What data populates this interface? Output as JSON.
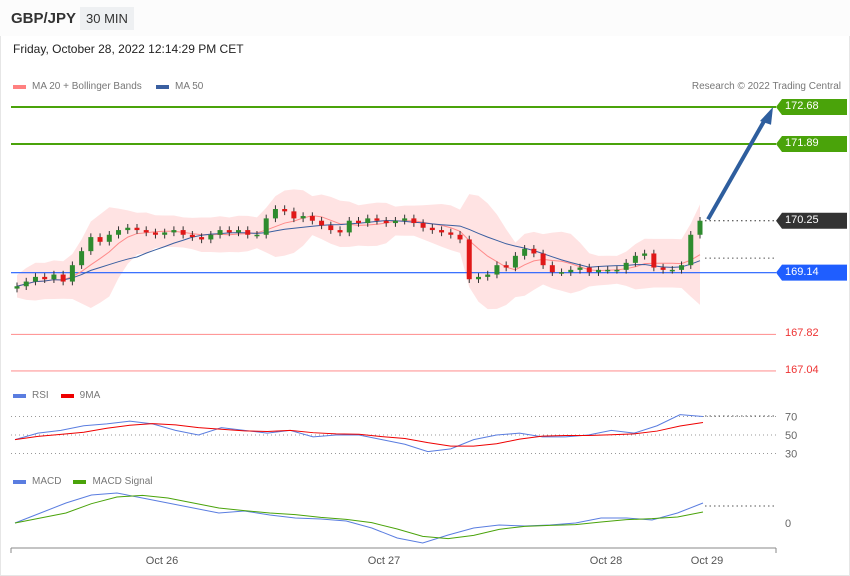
{
  "header": {
    "symbol": "GBP/JPY",
    "timeframe": "30 MIN"
  },
  "datetime": "Friday, October 28, 2022 12:14:29 PM CET",
  "legend": {
    "ma20": "MA 20 + Bollinger Bands",
    "ma50": "MA 50",
    "rsi": "RSI",
    "rsi_ma": "9MA",
    "macd": "MACD",
    "macd_signal": "MACD Signal"
  },
  "credit": "Research © 2022 Trading Central",
  "colors": {
    "green": "#4aa30a",
    "blue": "#1f5eff",
    "dark": "#333333",
    "red": "#ee3333",
    "ma50": "#3a5fa0",
    "arrow": "#2e5e9e"
  },
  "levels": [
    {
      "label": "172.68",
      "value": 172.68,
      "type": "resistance"
    },
    {
      "label": "171.89",
      "value": 171.89,
      "type": "resistance"
    },
    {
      "label": "170.25",
      "value": 170.25,
      "type": "current"
    },
    {
      "label": "169.14",
      "value": 169.14,
      "type": "pivot"
    },
    {
      "label": "167.82",
      "value": 167.82,
      "type": "support"
    },
    {
      "label": "167.04",
      "value": 167.04,
      "type": "support"
    }
  ],
  "chart_data": {
    "type": "candlestick",
    "closes": [
      168.85,
      168.95,
      169.05,
      169.0,
      169.1,
      168.95,
      169.3,
      169.6,
      169.9,
      169.8,
      169.95,
      170.05,
      170.1,
      170.05,
      170.0,
      169.95,
      170.0,
      170.05,
      169.95,
      169.9,
      169.85,
      169.95,
      170.05,
      170.0,
      170.05,
      169.95,
      169.95,
      170.3,
      170.5,
      170.45,
      170.3,
      170.35,
      170.25,
      170.15,
      170.05,
      170.0,
      170.25,
      170.2,
      170.3,
      170.25,
      170.2,
      170.25,
      170.3,
      170.2,
      170.1,
      170.05,
      170.0,
      169.95,
      169.85,
      169.0,
      169.05,
      169.1,
      169.3,
      169.25,
      169.5,
      169.65,
      169.55,
      169.3,
      169.15,
      169.15,
      169.2,
      169.25,
      169.15,
      169.2,
      169.2,
      169.2,
      169.35,
      169.5,
      169.55,
      169.25,
      169.2,
      169.2,
      169.3,
      169.95,
      170.25
    ],
    "rsi": [
      45,
      52,
      55,
      60,
      62,
      65,
      62,
      55,
      50,
      58,
      55,
      52,
      55,
      48,
      50,
      50,
      45,
      40,
      32,
      35,
      45,
      50,
      52,
      48,
      48,
      50,
      55,
      52,
      60,
      72,
      70
    ],
    "rsi_levels": [
      "70",
      "50",
      "30"
    ],
    "macd": [
      0,
      0.1,
      0.2,
      0.28,
      0.3,
      0.25,
      0.2,
      0.15,
      0.1,
      0.12,
      0.08,
      0.05,
      0.04,
      0.02,
      -0.05,
      -0.15,
      -0.2,
      -0.12,
      -0.05,
      -0.02,
      -0.03,
      -0.02,
      0,
      0.05,
      0.05,
      0.03,
      0.1,
      0.2
    ],
    "macd_zero": "0",
    "x_labels": [
      "Oct 26",
      "Oct 27",
      "Oct 28",
      "Oct 29"
    ],
    "target": 172.68
  }
}
